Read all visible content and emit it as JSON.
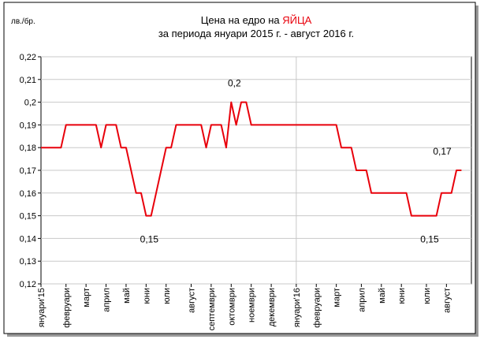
{
  "chart_data": {
    "type": "line",
    "title_parts": [
      "Цена на едро на ",
      "ЯЙЦА"
    ],
    "subtitle": "за периода януари 2015 г. - август 2016 г.",
    "ylabel": "лв./бр.",
    "categories": [
      "януари'15",
      null,
      null,
      null,
      null,
      "февруари",
      null,
      null,
      null,
      "март",
      null,
      null,
      null,
      "април",
      null,
      null,
      null,
      "май",
      null,
      null,
      null,
      "юни",
      null,
      null,
      null,
      "юли",
      null,
      null,
      null,
      null,
      "август",
      null,
      null,
      null,
      "септември",
      null,
      null,
      null,
      "октомври",
      null,
      null,
      null,
      "ноември",
      null,
      null,
      null,
      "декември",
      null,
      null,
      null,
      null,
      "януари'16",
      null,
      null,
      null,
      "февруари",
      null,
      null,
      null,
      "март",
      null,
      null,
      null,
      null,
      "април",
      null,
      null,
      null,
      "май",
      null,
      null,
      null,
      "юни",
      null,
      null,
      null,
      null,
      "юли",
      null,
      null,
      null,
      "август",
      null,
      null,
      null
    ],
    "series": [
      {
        "name": "ЯЙЦА",
        "color": "#e8000b",
        "values": [
          0.18,
          0.18,
          0.18,
          0.18,
          0.18,
          0.19,
          0.19,
          0.19,
          0.19,
          0.19,
          0.19,
          0.19,
          0.18,
          0.19,
          0.19,
          0.19,
          0.18,
          0.18,
          0.17,
          0.16,
          0.16,
          0.15,
          0.15,
          0.16,
          0.17,
          0.18,
          0.18,
          0.19,
          0.19,
          0.19,
          0.19,
          0.19,
          0.19,
          0.18,
          0.19,
          0.19,
          0.19,
          0.18,
          0.2,
          0.19,
          0.2,
          0.2,
          0.19,
          0.19,
          0.19,
          0.19,
          0.19,
          0.19,
          0.19,
          0.19,
          0.19,
          0.19,
          0.19,
          0.19,
          0.19,
          0.19,
          0.19,
          0.19,
          0.19,
          0.19,
          0.18,
          0.18,
          0.18,
          0.17,
          0.17,
          0.17,
          0.16,
          0.16,
          0.16,
          0.16,
          0.16,
          0.16,
          0.16,
          0.16,
          0.15,
          0.15,
          0.15,
          0.15,
          0.15,
          0.15,
          0.16,
          0.16,
          0.16,
          0.17,
          0.17
        ],
        "value_labels": [
          null,
          null,
          null,
          null,
          null,
          null,
          null,
          null,
          null,
          null,
          null,
          null,
          null,
          null,
          null,
          null,
          null,
          null,
          null,
          null,
          null,
          "0,15",
          null,
          null,
          null,
          null,
          null,
          null,
          null,
          null,
          null,
          null,
          null,
          null,
          null,
          null,
          null,
          null,
          "0,2",
          null,
          null,
          null,
          null,
          null,
          null,
          null,
          null,
          null,
          null,
          null,
          null,
          null,
          null,
          null,
          null,
          null,
          null,
          null,
          null,
          null,
          null,
          null,
          null,
          null,
          null,
          null,
          null,
          null,
          null,
          null,
          null,
          null,
          null,
          null,
          null,
          null,
          null,
          "0,15",
          null,
          null,
          null,
          null,
          null,
          "0,17",
          null
        ]
      }
    ],
    "ylim": [
      0.12,
      0.22
    ],
    "yticks": [
      {
        "value": 0.12,
        "label": "0,12"
      },
      {
        "value": 0.13,
        "label": "0,13"
      },
      {
        "value": 0.14,
        "label": "0,14"
      },
      {
        "value": 0.15,
        "label": "0,15"
      },
      {
        "value": 0.16,
        "label": "0,16"
      },
      {
        "value": 0.17,
        "label": "0,17"
      },
      {
        "value": 0.18,
        "label": "0,18"
      },
      {
        "value": 0.19,
        "label": "0,19"
      },
      {
        "value": 0.2,
        "label": "0,2"
      },
      {
        "value": 0.21,
        "label": "0,21"
      },
      {
        "value": 0.22,
        "label": "0,22"
      }
    ],
    "grid": true
  }
}
